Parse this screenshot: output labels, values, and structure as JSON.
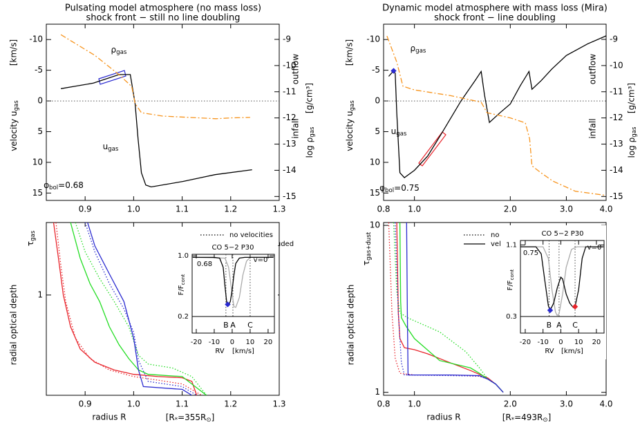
{
  "chart_data": [
    {
      "type": "line",
      "title": [
        "Pulsating model atmosphere (no mass loss)",
        "shock front − still no line doubling"
      ],
      "xlim": [
        0.82,
        1.3
      ],
      "xticks": [
        0.9,
        {
          "value": 1,
          "label": "1.0"
        },
        1.1,
        1.2,
        1.3
      ],
      "xlog": false,
      "ylim": [
        16.2,
        -12.5
      ],
      "yticks": [
        -10,
        -5,
        0,
        5,
        10,
        15
      ],
      "y2lim": [
        -15.15,
        -8.42
      ],
      "y2ticks": [
        -9,
        -10,
        -11,
        -12,
        -13,
        -14,
        -15
      ],
      "hline": 0,
      "ylabel": [
        "[km/s]",
        [
          "velocity  u",
          "gas"
        ]
      ],
      "y2label": [
        "[g/cm³]",
        [
          "log ρ",
          "gas"
        ]
      ],
      "annotations": [
        {
          "text": [
            "ρ",
            "gas"
          ],
          "color": "#f7941d"
        },
        {
          "text": [
            "u",
            "gas"
          ],
          "color": "#000000"
        },
        {
          "text": [
            "φ",
            "bol",
            "=0.68"
          ],
          "color": "#000000"
        },
        {
          "text": "outflow",
          "color": "#3a9ee0"
        },
        {
          "text": "infall",
          "color": "#e8232a"
        }
      ],
      "series": [
        {
          "color": "#000000",
          "dash": "solid",
          "x": [
            0.85,
            0.917,
            0.97,
            0.993,
            1.003,
            1.009,
            1.016,
            1.025,
            1.036,
            1.102,
            1.168,
            1.244
          ],
          "values": [
            -2.0,
            -2.9,
            -4.3,
            -4.3,
            0.45,
            6.1,
            11.7,
            13.7,
            14.0,
            13.1,
            12.0,
            11.2
          ]
        },
        {
          "color": "#f7941d",
          "dash": "dashdot",
          "axis": "y2",
          "x": [
            0.85,
            0.92,
            0.97,
            0.996,
            1.003,
            1.016,
            1.06,
            1.17,
            1.2,
            1.24
          ],
          "values": [
            -8.82,
            -9.61,
            -10.35,
            -10.8,
            -11.45,
            -11.8,
            -11.93,
            -12.03,
            -12.0,
            -11.98
          ]
        }
      ]
    },
    {
      "type": "line",
      "title": [
        "Dynamic model atmosphere with mass loss (Mira)",
        "shock front − line doubling"
      ],
      "xlim": [
        0.8,
        4.0
      ],
      "xticks": [
        0.8,
        {
          "value": 1,
          "label": "1.0"
        },
        {
          "value": 2,
          "label": "2.0"
        },
        {
          "value": 3,
          "label": "3.0"
        },
        {
          "value": 4,
          "label": "4.0"
        }
      ],
      "xlog": true,
      "ylim": [
        16.2,
        -12.5
      ],
      "yticks": [
        -10,
        -5,
        0,
        5,
        10,
        15
      ],
      "y2lim": [
        -15.15,
        -8.42
      ],
      "y2ticks": [
        -9,
        -10,
        -11,
        -12,
        -13,
        -14,
        -15
      ],
      "hline": 0,
      "ylabel": [
        "[km/s]",
        [
          "velocity  u",
          "gas"
        ]
      ],
      "y2label": [
        "[g/cm³]",
        [
          "log ρ",
          "gas"
        ]
      ],
      "annotations": [
        {
          "text": [
            "ρ",
            "gas"
          ],
          "color": "#f7941d"
        },
        {
          "text": [
            "u",
            "gas"
          ],
          "color": "#000000"
        },
        {
          "text": [
            "φ",
            "bol",
            "=0.75"
          ],
          "color": "#000000"
        },
        {
          "text": "outflow",
          "color": "#3a9ee0"
        },
        {
          "text": "infall",
          "color": "#e8232a"
        }
      ],
      "points": [
        {
          "x": 0.86,
          "y": -4.9,
          "color": "#2a2ad0"
        }
      ],
      "series": [
        {
          "color": "#000000",
          "dash": "solid",
          "x": [
            0.83,
            0.86,
            0.87,
            0.88,
            0.9,
            0.93,
            1.0,
            1.1,
            1.22,
            1.4,
            1.55,
            1.62,
            1.66,
            1.72,
            1.85,
            2.0,
            2.15,
            2.29,
            2.34,
            2.5,
            2.7,
            3.0,
            3.5,
            4.0
          ],
          "values": [
            -4.0,
            -4.9,
            -4.5,
            2,
            11.7,
            12.5,
            11.3,
            9,
            5.2,
            0,
            -3.3,
            -4.8,
            -1,
            3.5,
            2,
            0.5,
            -2.5,
            -4.8,
            -1.9,
            -3.3,
            -5.2,
            -7.4,
            -9.3,
            -10.6
          ]
        },
        {
          "color": "#f7941d",
          "dash": "dashdot",
          "axis": "y2",
          "x": [
            0.82,
            0.88,
            0.92,
            1.0,
            1.3,
            1.62,
            1.69,
            2.0,
            2.23,
            2.3,
            2.34,
            2.5,
            2.72,
            3.2,
            4.0
          ],
          "values": [
            -8.87,
            -9.87,
            -10.79,
            -10.93,
            -11.15,
            -11.4,
            -11.8,
            -12.0,
            -12.19,
            -12.8,
            -13.83,
            -14.1,
            -14.41,
            -14.8,
            -14.96
          ]
        }
      ]
    },
    {
      "type": "line",
      "xlim": [
        0.82,
        1.3
      ],
      "xticks": [
        0.9,
        {
          "value": 1,
          "label": "1.0"
        },
        1.1,
        1.2,
        1.3
      ],
      "xlog": false,
      "ylim": [
        0.2,
        3.2
      ],
      "yticks": [
        1
      ],
      "ylog": true,
      "xlabel": [
        "radius R",
        [
          "[R",
          "*",
          "=355R",
          "⊙",
          "]"
        ]
      ],
      "ylabel": [
        "radial optical depth",
        [
          "τ",
          "gas"
        ]
      ],
      "legend": [
        {
          "label": "no velocities",
          "dash": "dotted"
        },
        {
          "label": "velocities included",
          "dash": "solid"
        }
      ],
      "series": [
        {
          "color": "#e8232a",
          "dash": "solid",
          "x": [
            0.835,
            0.845,
            0.855,
            0.87,
            0.89,
            0.92,
            0.96,
            1.0,
            1.05,
            1.1,
            1.12,
            1.13
          ],
          "values": [
            3.2,
            1.8,
            1.0,
            0.6,
            0.42,
            0.34,
            0.3,
            0.28,
            0.27,
            0.265,
            0.25,
            0.2
          ]
        },
        {
          "color": "#e8232a",
          "dash": "dotted",
          "x": [
            0.84,
            0.85,
            0.86,
            0.88,
            0.91,
            0.95,
            1.0,
            1.05,
            1.1,
            1.14
          ],
          "values": [
            3.2,
            1.6,
            0.9,
            0.5,
            0.36,
            0.3,
            0.27,
            0.255,
            0.24,
            0.2
          ]
        },
        {
          "color": "#22dd22",
          "dash": "solid",
          "x": [
            0.87,
            0.89,
            0.91,
            0.93,
            0.95,
            0.97,
            0.99,
            1.01,
            1.03,
            1.1,
            1.15
          ],
          "values": [
            3.2,
            1.8,
            1.2,
            0.9,
            0.6,
            0.45,
            0.36,
            0.3,
            0.28,
            0.27,
            0.2
          ]
        },
        {
          "color": "#22dd22",
          "dash": "dotted",
          "x": [
            0.88,
            0.9,
            0.93,
            0.96,
            0.99,
            1.01,
            1.03,
            1.08,
            1.12,
            1.15
          ],
          "values": [
            3.2,
            2.0,
            1.3,
            0.9,
            0.6,
            0.38,
            0.33,
            0.31,
            0.27,
            0.2
          ]
        },
        {
          "color": "#2a2ad0",
          "dash": "solid",
          "x": [
            0.905,
            0.92,
            0.95,
            0.98,
            1.0,
            1.01,
            1.02,
            1.1,
            1.12
          ],
          "values": [
            3.2,
            2.2,
            1.4,
            0.9,
            0.5,
            0.3,
            0.23,
            0.22,
            0.2
          ]
        },
        {
          "color": "#2a2ad0",
          "dash": "dotted",
          "x": [
            0.9,
            0.92,
            0.95,
            0.98,
            1.0,
            1.01,
            1.03,
            1.1,
            1.13
          ],
          "values": [
            3.2,
            2.0,
            1.2,
            0.8,
            0.55,
            0.35,
            0.25,
            0.23,
            0.2
          ]
        }
      ]
    },
    {
      "type": "line",
      "xlim": [
        0.8,
        4.0
      ],
      "xticks": [
        0.8,
        {
          "value": 1,
          "label": "1.0"
        },
        {
          "value": 2,
          "label": "2.0"
        },
        {
          "value": 3,
          "label": "3.0"
        },
        {
          "value": 4,
          "label": "4.0"
        }
      ],
      "xlog": true,
      "ylim": [
        0.96,
        10.4
      ],
      "yticks": [
        1,
        10
      ],
      "ylog": true,
      "xlabel": [
        "radius R",
        [
          "[R",
          "*",
          "=493R",
          "⊙",
          "]"
        ]
      ],
      "ylabel": [
        "radial optical depth",
        [
          "τ",
          "gas+dust"
        ]
      ],
      "legend": [
        {
          "label": "no velocities",
          "dash": "dotted"
        },
        {
          "label": "velocities included",
          "dash": "solid"
        }
      ],
      "series": [
        {
          "color": "#e8232a",
          "dash": "solid",
          "x": [
            0.88,
            0.89,
            0.9,
            0.93,
            1.0,
            1.1,
            1.3,
            1.5,
            1.7,
            1.8,
            1.9
          ],
          "values": [
            10.4,
            3,
            2.1,
            1.85,
            1.8,
            1.7,
            1.5,
            1.35,
            1.22,
            1.12,
            1.0
          ]
        },
        {
          "color": "#e8232a",
          "dash": "dotted",
          "x": [
            0.83,
            0.85,
            0.87,
            0.9,
            1.0,
            1.3,
            1.6,
            1.7,
            1.8,
            1.9
          ],
          "values": [
            10.4,
            3,
            1.6,
            1.3,
            1.27,
            1.27,
            1.25,
            1.2,
            1.12,
            1.0
          ]
        },
        {
          "color": "#22dd22",
          "dash": "solid",
          "x": [
            0.9,
            0.905,
            0.91,
            0.94,
            1.0,
            1.2,
            1.5,
            1.6,
            1.7,
            1.8,
            1.9
          ],
          "values": [
            10.4,
            3.5,
            2.8,
            2.5,
            2.1,
            1.55,
            1.4,
            1.3,
            1.2,
            1.12,
            1.0
          ]
        },
        {
          "color": "#22dd22",
          "dash": "dotted",
          "x": [
            0.86,
            0.88,
            0.9,
            0.95,
            1.2,
            1.45,
            1.6,
            1.7,
            1.8,
            1.9
          ],
          "values": [
            10.4,
            4,
            3.0,
            2.8,
            2.3,
            1.75,
            1.4,
            1.2,
            1.12,
            1.0
          ]
        },
        {
          "color": "#2a2ad0",
          "dash": "solid",
          "x": [
            0.945,
            0.95,
            0.955,
            1.0,
            1.3,
            1.6,
            1.7,
            1.8,
            1.9
          ],
          "values": [
            10.4,
            3,
            1.27,
            1.27,
            1.27,
            1.26,
            1.2,
            1.12,
            1.0
          ]
        },
        {
          "color": "#2a2ad0",
          "dash": "dotted",
          "x": [
            0.87,
            0.89,
            0.91,
            0.93,
            1.3,
            1.6,
            1.7,
            1.8,
            1.9
          ],
          "values": [
            10.4,
            3,
            1.5,
            1.27,
            1.26,
            1.25,
            1.2,
            1.12,
            1.0
          ]
        }
      ]
    },
    {
      "type": "line",
      "title": [
        "CO 5−2 P30"
      ],
      "xlim": [
        -22.3,
        23.5
      ],
      "xticks": [
        -20,
        -10,
        0,
        10,
        20
      ],
      "ylim": [
        0.2,
        1.02
      ],
      "yticks": [
        {
          "value": 1,
          "label": "1.0"
        },
        0.2
      ],
      "xlabel": [
        "RV",
        "[km/s]"
      ],
      "ylabel": [
        [
          "F/F",
          "cont"
        ]
      ],
      "annotations": [
        {
          "text": "0.68",
          "color": "#000000"
        },
        {
          "text": "v=0",
          "color": "#000000"
        }
      ],
      "markers": [
        {
          "label": "B",
          "x": -3.5,
          "color": "#2a2ad0"
        },
        {
          "label": "A",
          "x": 0.4,
          "color": "#22cc22"
        },
        {
          "label": "C",
          "x": 10,
          "color": "#e8232a"
        }
      ],
      "points": [
        {
          "x": -2.5,
          "y": 0.36,
          "color": "#2a2ad0"
        }
      ],
      "series": [
        {
          "color": "#aaaaaa",
          "dash": "solid",
          "x": [
            -22,
            -4,
            -2,
            0,
            1,
            2,
            4,
            6,
            8,
            10,
            23
          ],
          "values": [
            0.98,
            0.97,
            0.85,
            0.5,
            0.33,
            0.32,
            0.45,
            0.75,
            0.93,
            0.98,
            0.98
          ]
        },
        {
          "color": "#000000",
          "dash": "solid",
          "x": [
            -22,
            -10,
            -7,
            -5,
            -4,
            -3,
            -2,
            -1,
            0,
            1,
            2,
            4,
            7,
            23
          ],
          "values": [
            0.98,
            0.98,
            0.97,
            0.85,
            0.6,
            0.38,
            0.35,
            0.4,
            0.55,
            0.75,
            0.9,
            0.97,
            0.98,
            0.98
          ]
        }
      ]
    },
    {
      "type": "line",
      "title": [
        "CO 5−2 P30"
      ],
      "xlim": [
        -22.7,
        24.3
      ],
      "xticks": [
        -20,
        -10,
        0,
        10,
        20
      ],
      "ylim": [
        0.3,
        1.15
      ],
      "yticks": [
        1.1,
        0.3
      ],
      "xlabel": [
        "RV",
        "[km/s]"
      ],
      "ylabel": [
        [
          "F/F",
          "cont"
        ]
      ],
      "annotations": [
        {
          "text": "0.75",
          "color": "#000000"
        },
        {
          "text": "v=0",
          "color": "#000000"
        }
      ],
      "markers": [
        {
          "label": "B",
          "x": -6.6,
          "color": "#2a2ad0"
        },
        {
          "label": "A",
          "x": -1,
          "color": "#22cc22"
        },
        {
          "label": "C",
          "x": 8,
          "color": "#e8232a"
        }
      ],
      "points": [
        {
          "x": -6,
          "y": 0.37,
          "color": "#2a2ad0"
        },
        {
          "x": 8,
          "y": 0.41,
          "color": "#e8232a"
        }
      ],
      "series": [
        {
          "color": "#aaaaaa",
          "dash": "solid",
          "x": [
            -22.7,
            -10,
            -7,
            -5,
            -3,
            -2,
            -1,
            1,
            3,
            6,
            9,
            24
          ],
          "values": [
            1.08,
            1.08,
            0.95,
            0.6,
            0.35,
            0.31,
            0.33,
            0.55,
            0.85,
            1.05,
            1.08,
            1.08
          ]
        },
        {
          "color": "#000000",
          "dash": "solid",
          "x": [
            -22.7,
            -14,
            -11,
            -9,
            -7,
            -6,
            -4,
            -2,
            0,
            1,
            3,
            5,
            7,
            8,
            10,
            12,
            14,
            24
          ],
          "values": [
            1.08,
            1.08,
            1.0,
            0.7,
            0.42,
            0.37,
            0.45,
            0.62,
            0.74,
            0.72,
            0.55,
            0.45,
            0.4,
            0.41,
            0.6,
            0.95,
            1.08,
            1.08
          ]
        }
      ]
    }
  ]
}
